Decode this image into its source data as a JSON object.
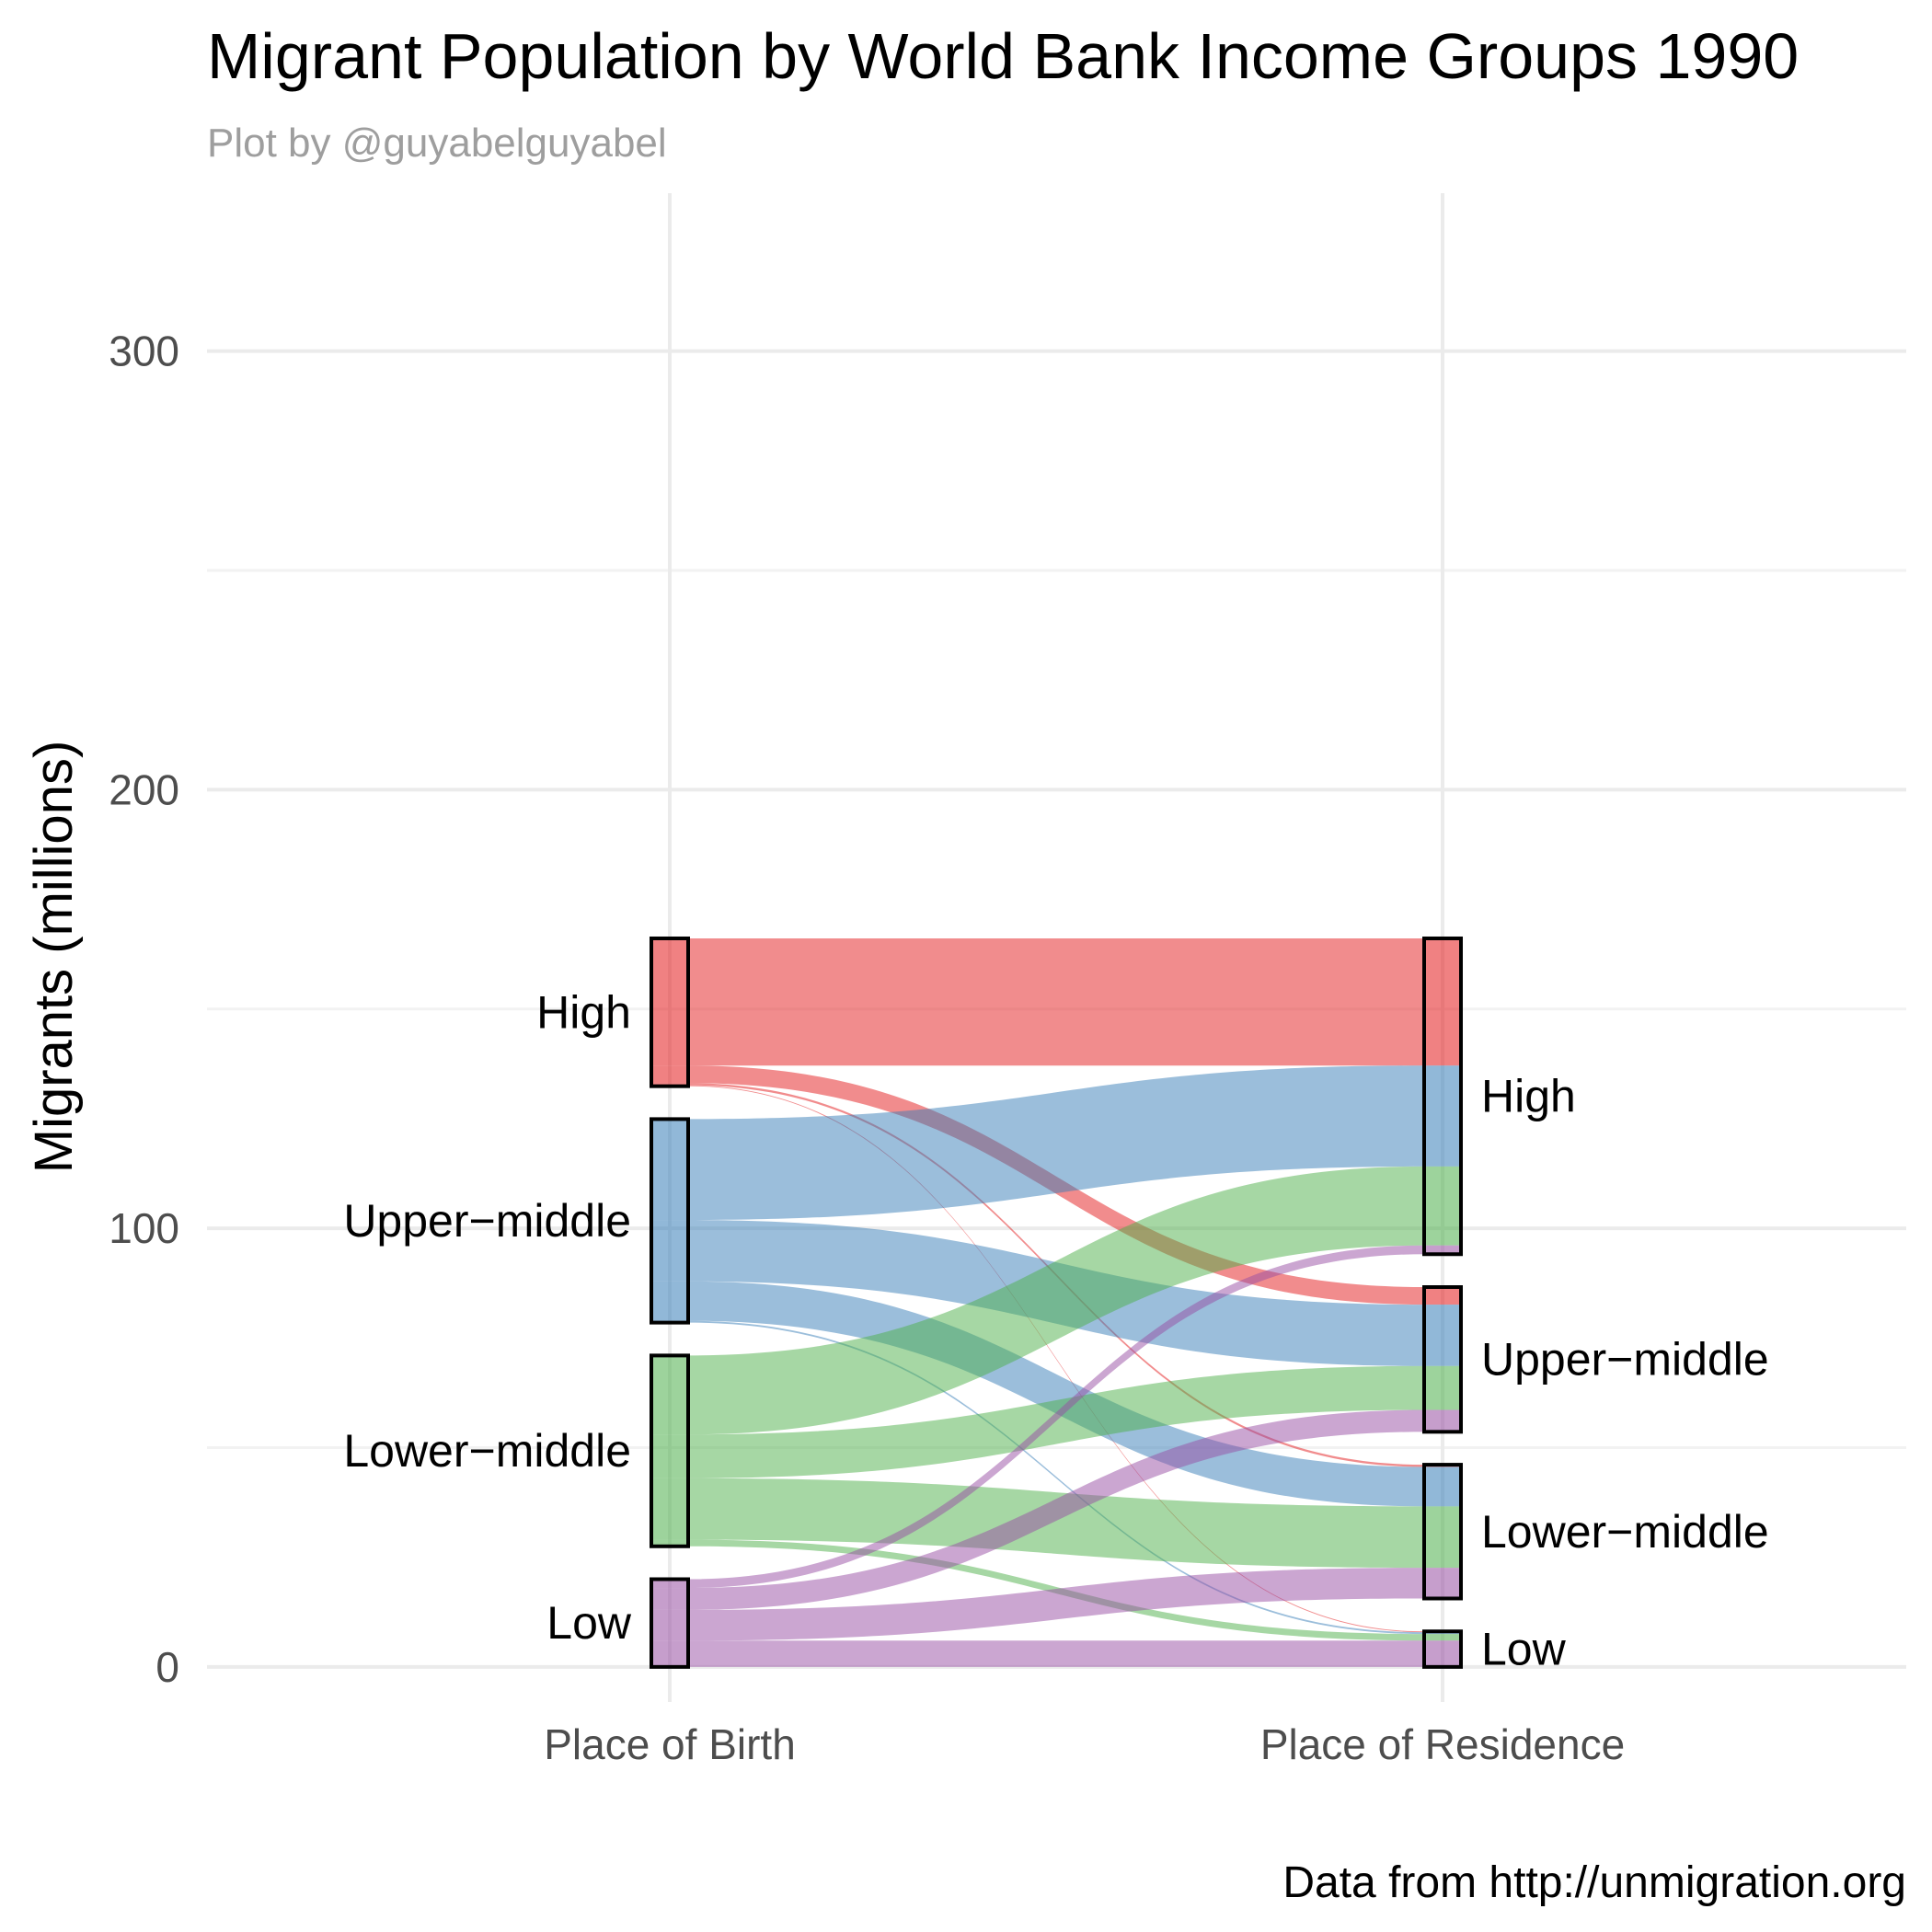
{
  "chart_data": {
    "type": "alluvial",
    "title": "Migrant Population by World Bank Income Groups 1990",
    "subtitle": "Plot by @guyabelguyabel",
    "caption": "Data from http://unmigration.org",
    "ylabel": "Migrants (millions)",
    "xlabel": "",
    "ylim": [
      -8,
      336
    ],
    "y_ticks": [
      0,
      100,
      200,
      300
    ],
    "grid": true,
    "axes": [
      "Place of Birth",
      "Place of Residence"
    ],
    "groups": [
      {
        "name": "High",
        "color": "#E41A1C"
      },
      {
        "name": "Upper−middle",
        "color": "#377EB8"
      },
      {
        "name": "Lower−middle",
        "color": "#4DAF4A"
      },
      {
        "name": "Low",
        "color": "#984EA3"
      }
    ],
    "flows": [
      {
        "from": "High",
        "to": "High",
        "value": 29
      },
      {
        "from": "High",
        "to": "Upper−middle",
        "value": 4
      },
      {
        "from": "High",
        "to": "Lower−middle",
        "value": 0.5
      },
      {
        "from": "High",
        "to": "Low",
        "value": 0.2
      },
      {
        "from": "Upper−middle",
        "to": "High",
        "value": 23
      },
      {
        "from": "Upper−middle",
        "to": "Upper−middle",
        "value": 14
      },
      {
        "from": "Upper−middle",
        "to": "Lower−middle",
        "value": 9
      },
      {
        "from": "Upper−middle",
        "to": "Low",
        "value": 0.4
      },
      {
        "from": "Lower−middle",
        "to": "High",
        "value": 18
      },
      {
        "from": "Lower−middle",
        "to": "Upper−middle",
        "value": 10
      },
      {
        "from": "Lower−middle",
        "to": "Lower−middle",
        "value": 14
      },
      {
        "from": "Lower−middle",
        "to": "Low",
        "value": 1.5
      },
      {
        "from": "Low",
        "to": "High",
        "value": 2
      },
      {
        "from": "Low",
        "to": "Upper−middle",
        "value": 5
      },
      {
        "from": "Low",
        "to": "Lower−middle",
        "value": 7
      },
      {
        "from": "Low",
        "to": "Low",
        "value": 6
      }
    ]
  }
}
